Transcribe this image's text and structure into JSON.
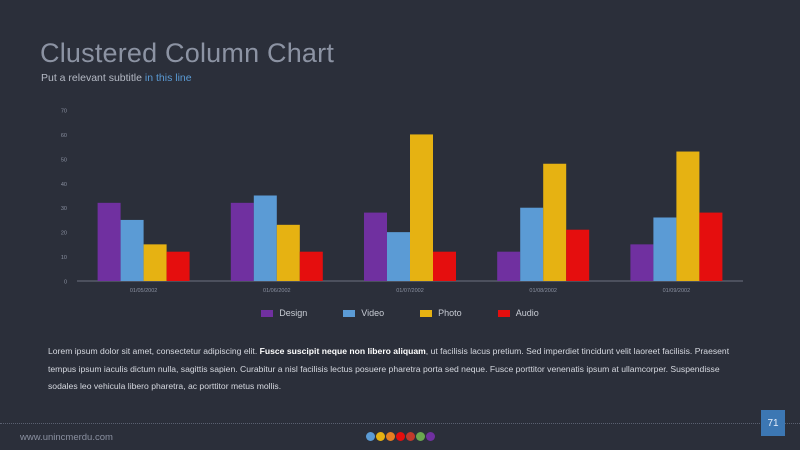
{
  "header": {
    "title": "Clustered Column Chart",
    "subtitle_main": "Put a relevant subtitle ",
    "subtitle_highlight": "in this line"
  },
  "chart_data": {
    "type": "bar",
    "categories": [
      "01/05/2002",
      "01/06/2002",
      "01/07/2002",
      "01/08/2002",
      "01/09/2002"
    ],
    "series": [
      {
        "name": "Design",
        "color": "#7030a0",
        "values": [
          32,
          32,
          28,
          12,
          15
        ]
      },
      {
        "name": "Video",
        "color": "#5b9bd5",
        "values": [
          25,
          35,
          20,
          30,
          26
        ]
      },
      {
        "name": "Photo",
        "color": "#e6b212",
        "values": [
          15,
          23,
          60,
          48,
          53
        ]
      },
      {
        "name": "Audio",
        "color": "#e50e0e",
        "values": [
          12,
          12,
          12,
          21,
          28
        ]
      }
    ],
    "yticks": [
      0,
      10,
      20,
      30,
      40,
      50,
      60,
      70
    ],
    "ylim": [
      0,
      70
    ],
    "legend_position": "bottom",
    "grid": false
  },
  "body": {
    "p1": "Lorem ipsum dolor sit amet, consectetur adipiscing elit. ",
    "p_bold": "Fusce suscipit neque non libero aliquam",
    "p2": ", ut facilisis lacus pretium. Sed imperdiet tincidunt velit laoreet facilisis. Praesent tempus ipsum iaculis dictum nulla, sagittis sapien. Curabitur a nisl facilisis lectus posuere pharetra porta sed neque. Fusce porttitor venenatis ipsum at ullamcorper. Suspendisse sodales leo vehicula libero pharetra, ac porttitor metus mollis."
  },
  "footer": {
    "url": "www.unincmerdu.com",
    "page_number": "71",
    "dot_colors": [
      "#5b9bd5",
      "#e6b212",
      "#e67e22",
      "#e50e0e",
      "#c0392b",
      "#6aa84f",
      "#7030a0"
    ]
  }
}
